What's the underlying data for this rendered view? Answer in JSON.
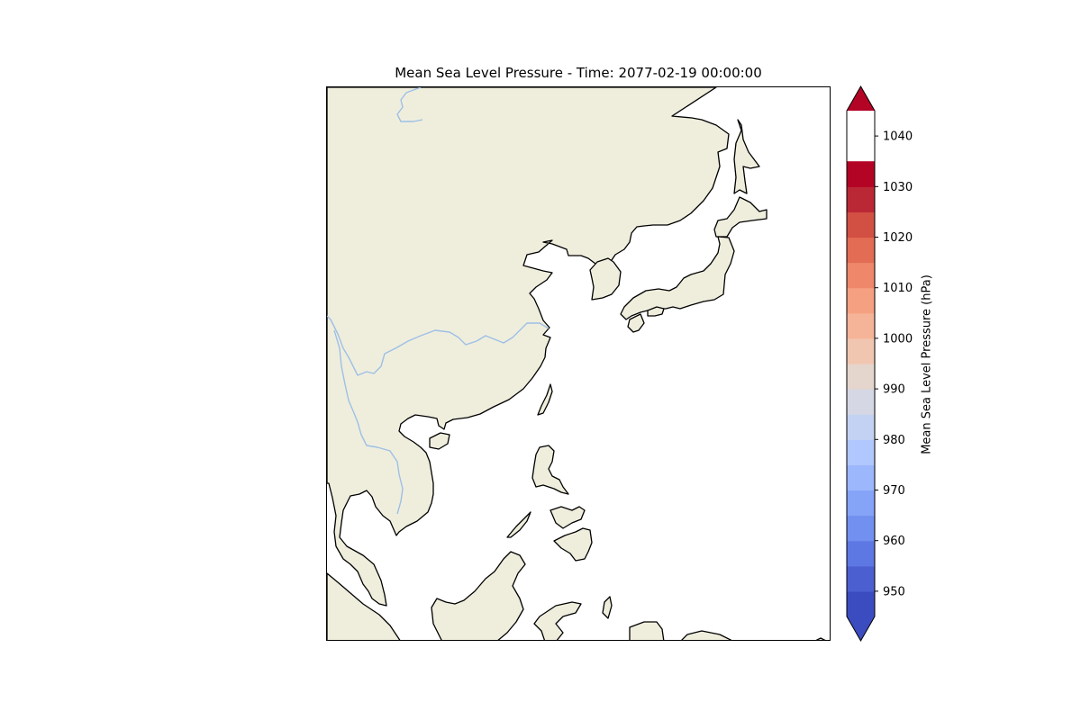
{
  "title": "Mean Sea Level Pressure - Time: 2077-02-19 00:00:00",
  "colorbar": {
    "label": "Mean Sea Level Pressure (hPa)",
    "min": 945,
    "max": 1045,
    "step": 5,
    "extend": "both",
    "tick_labels": [
      "950",
      "960",
      "970",
      "980",
      "990",
      "1000",
      "1010",
      "1020",
      "1030",
      "1040"
    ],
    "level_colors": [
      "#3b4cc0",
      "#4b5fd1",
      "#5e78e3",
      "#7190ef",
      "#85a3f7",
      "#9cb7fc",
      "#b1c8fe",
      "#c3d2f2",
      "#d5d8e4",
      "#e4d6cc",
      "#f1c6b0",
      "#f5b498",
      "#f5a181",
      "#ef876a",
      "#e36c55",
      "#d14f43",
      "#bb2835",
      "#b40426"
    ]
  },
  "map": {
    "land_color": "#efeedd",
    "ocean_color": "#ffffff",
    "coastline_color": "#000000",
    "river_color": "#9ebfe6"
  }
}
